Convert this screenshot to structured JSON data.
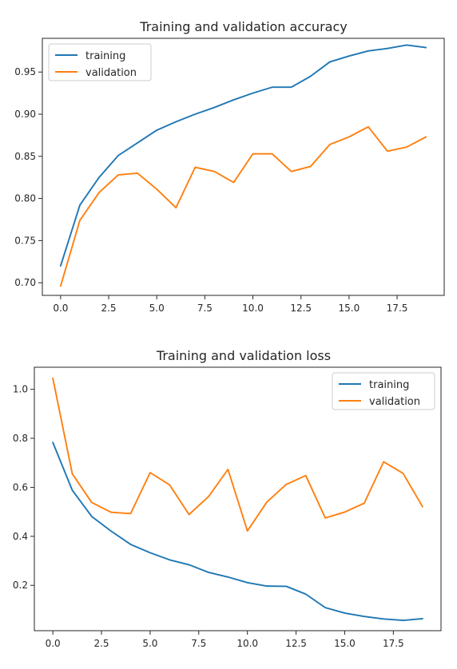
{
  "chart_data": [
    {
      "type": "line",
      "title": "Training and validation accuracy",
      "xlabel": "",
      "ylabel": "",
      "xlim": [
        -0.95,
        19.95
      ],
      "ylim": [
        0.685,
        0.99
      ],
      "xticks": [
        "0.0",
        "2.5",
        "5.0",
        "7.5",
        "10.0",
        "12.5",
        "15.0",
        "17.5"
      ],
      "xtick_values": [
        0,
        2.5,
        5,
        7.5,
        10,
        12.5,
        15,
        17.5
      ],
      "yticks": [
        "0.70",
        "0.75",
        "0.80",
        "0.85",
        "0.90",
        "0.95"
      ],
      "ytick_values": [
        0.7,
        0.75,
        0.8,
        0.85,
        0.9,
        0.95
      ],
      "legend_position": "top-left",
      "grid": false,
      "x": [
        0,
        1,
        2,
        3,
        4,
        5,
        6,
        7,
        8,
        9,
        10,
        11,
        12,
        13,
        14,
        15,
        16,
        17,
        18,
        19
      ],
      "series": [
        {
          "name": "training",
          "color": "#1f77b4",
          "values": [
            0.72,
            0.792,
            0.825,
            0.851,
            0.866,
            0.881,
            0.891,
            0.9,
            0.908,
            0.917,
            0.925,
            0.932,
            0.932,
            0.945,
            0.962,
            0.969,
            0.975,
            0.978,
            0.982,
            0.979
          ]
        },
        {
          "name": "validation",
          "color": "#ff7f0e",
          "values": [
            0.696,
            0.774,
            0.807,
            0.828,
            0.83,
            0.811,
            0.789,
            0.837,
            0.832,
            0.819,
            0.853,
            0.853,
            0.832,
            0.838,
            0.864,
            0.873,
            0.885,
            0.856,
            0.861,
            0.873
          ]
        }
      ]
    },
    {
      "type": "line",
      "title": "Training and validation loss",
      "xlabel": "",
      "ylabel": "",
      "xlim": [
        -0.95,
        19.95
      ],
      "ylim": [
        0.015,
        1.09
      ],
      "xticks": [
        "0.0",
        "2.5",
        "5.0",
        "7.5",
        "10.0",
        "12.5",
        "15.0",
        "17.5"
      ],
      "xtick_values": [
        0,
        2.5,
        5,
        7.5,
        10,
        12.5,
        15,
        17.5
      ],
      "yticks": [
        "0.2",
        "0.4",
        "0.6",
        "0.8",
        "1.0"
      ],
      "ytick_values": [
        0.2,
        0.4,
        0.6,
        0.8,
        1.0
      ],
      "legend_position": "top-right",
      "grid": false,
      "x": [
        0,
        1,
        2,
        3,
        4,
        5,
        6,
        7,
        8,
        9,
        10,
        11,
        12,
        13,
        14,
        15,
        16,
        17,
        18,
        19
      ],
      "series": [
        {
          "name": "training",
          "color": "#1f77b4",
          "values": [
            0.783,
            0.588,
            0.481,
            0.421,
            0.367,
            0.333,
            0.304,
            0.284,
            0.253,
            0.234,
            0.211,
            0.197,
            0.196,
            0.164,
            0.109,
            0.087,
            0.073,
            0.063,
            0.057,
            0.064
          ]
        },
        {
          "name": "validation",
          "color": "#ff7f0e",
          "values": [
            1.045,
            0.655,
            0.538,
            0.498,
            0.493,
            0.66,
            0.61,
            0.489,
            0.562,
            0.673,
            0.422,
            0.54,
            0.612,
            0.648,
            0.475,
            0.499,
            0.535,
            0.704,
            0.657,
            0.521
          ]
        }
      ]
    }
  ]
}
